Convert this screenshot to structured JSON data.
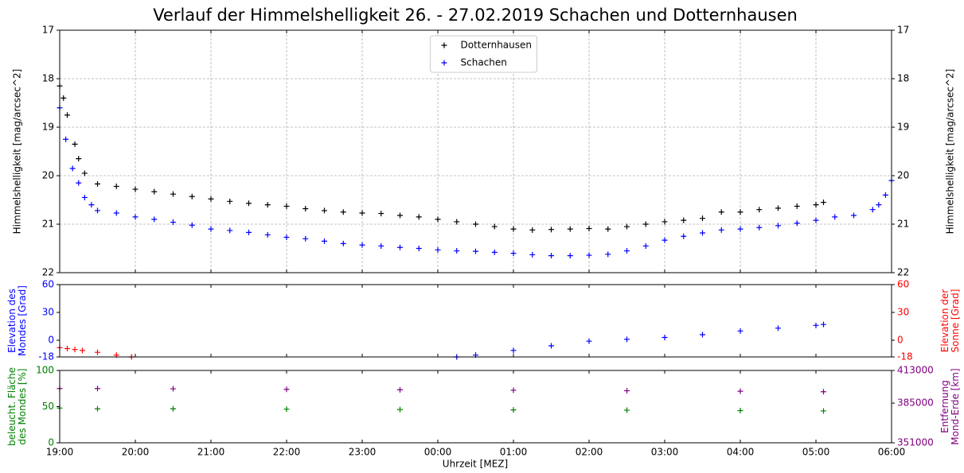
{
  "chart_data": [
    {
      "type": "scatter",
      "title": "Verlauf der Himmelshelligkeit 26. - 27.02.2019 Schachen und Dotternhausen",
      "ylabel": [
        "Himmelshelligkeit [mag/arcsec^2]"
      ],
      "y2label": [
        "Himmelshelligkeit [mag/arcsec^2]"
      ],
      "ylim": [
        22,
        17
      ],
      "yticks": [
        17,
        18,
        19,
        20,
        21,
        22
      ],
      "y2lim": [
        22,
        17
      ],
      "y2ticks": [
        17,
        18,
        19,
        20,
        21,
        22
      ],
      "y_color": "#000000",
      "y2_color": "#000000",
      "grid": true,
      "legend": "upper center",
      "series": [
        {
          "name": "Dotternhausen",
          "color": "#000000",
          "x": [
            19.0,
            19.05,
            19.1,
            19.2,
            19.25,
            19.33,
            19.5,
            19.75,
            20.0,
            20.25,
            20.5,
            20.75,
            21.0,
            21.25,
            21.5,
            21.75,
            22.0,
            22.25,
            22.5,
            22.75,
            23.0,
            23.25,
            23.5,
            23.75,
            24.0,
            24.25,
            24.5,
            24.75,
            25.0,
            25.25,
            25.5,
            25.75,
            26.0,
            26.25,
            26.5,
            26.75,
            27.0,
            27.25,
            27.5,
            27.75,
            28.0,
            28.25,
            28.5,
            28.75,
            29.0,
            29.1
          ],
          "values": [
            18.15,
            18.4,
            18.75,
            19.35,
            19.65,
            19.95,
            20.17,
            20.22,
            20.28,
            20.33,
            20.38,
            20.43,
            20.48,
            20.53,
            20.57,
            20.6,
            20.63,
            20.68,
            20.72,
            20.75,
            20.77,
            20.78,
            20.82,
            20.85,
            20.9,
            20.95,
            21.0,
            21.05,
            21.1,
            21.12,
            21.11,
            21.1,
            21.09,
            21.1,
            21.05,
            21.0,
            20.95,
            20.92,
            20.88,
            20.75,
            20.75,
            20.7,
            20.67,
            20.63,
            20.6,
            20.55
          ]
        },
        {
          "name": "Schachen",
          "color": "#0000ff",
          "x": [
            19.0,
            19.08,
            19.17,
            19.25,
            19.33,
            19.42,
            19.5,
            19.75,
            20.0,
            20.25,
            20.5,
            20.75,
            21.0,
            21.25,
            21.5,
            21.75,
            22.0,
            22.25,
            22.5,
            22.75,
            23.0,
            23.25,
            23.5,
            23.75,
            24.0,
            24.25,
            24.5,
            24.75,
            25.0,
            25.25,
            25.5,
            25.75,
            26.0,
            26.25,
            26.5,
            26.75,
            27.0,
            27.25,
            27.5,
            27.75,
            28.0,
            28.25,
            28.5,
            28.75,
            29.0,
            29.25,
            29.5,
            29.75,
            29.83,
            29.92,
            30.0
          ],
          "values": [
            18.6,
            19.25,
            19.85,
            20.15,
            20.45,
            20.6,
            20.72,
            20.77,
            20.85,
            20.9,
            20.96,
            21.02,
            21.1,
            21.13,
            21.17,
            21.22,
            21.27,
            21.3,
            21.35,
            21.4,
            21.43,
            21.45,
            21.48,
            21.5,
            21.53,
            21.55,
            21.56,
            21.58,
            21.6,
            21.63,
            21.65,
            21.65,
            21.64,
            21.62,
            21.55,
            21.45,
            21.33,
            21.25,
            21.18,
            21.12,
            21.1,
            21.07,
            21.03,
            20.98,
            20.92,
            20.85,
            20.82,
            20.7,
            20.6,
            20.4,
            20.1
          ]
        }
      ]
    },
    {
      "type": "scatter",
      "ylabel": [
        "Elevation des",
        "Mondes [Grad]"
      ],
      "y2label": [
        "Elevation der",
        "Sonne [Grad]"
      ],
      "ylim": [
        -18,
        60
      ],
      "yticks": [
        -18,
        0,
        30,
        60
      ],
      "y2lim": [
        -18,
        60
      ],
      "y2ticks": [
        -18,
        0,
        30,
        60
      ],
      "y_color": "#0000ff",
      "y2_color": "#ff0000",
      "series": [
        {
          "color": "#0000ff",
          "x": [
            24.25,
            24.5,
            25.0,
            25.5,
            26.0,
            26.5,
            27.0,
            27.5,
            28.0,
            28.5,
            29.0,
            29.1
          ],
          "values": [
            -18,
            -16,
            -11,
            -6,
            -1,
            1,
            3,
            6,
            10,
            13,
            16,
            17
          ]
        },
        {
          "color": "#ff0000",
          "axis": "y2",
          "x": [
            19.0,
            19.1,
            19.2,
            19.3,
            19.5,
            19.75,
            19.95
          ],
          "values": [
            -8,
            -9,
            -10,
            -11,
            -13,
            -16,
            -18
          ]
        }
      ]
    },
    {
      "type": "scatter",
      "ylabel": [
        "beleucht. Fläche",
        "des Mondes [%]"
      ],
      "y2label": [
        "Entfernung",
        "Mond-Erde [km]"
      ],
      "xlabel": "Uhrzeit [MEZ]",
      "xlim": [
        19,
        30
      ],
      "xticks": [
        {
          "value": 19,
          "label": "19:00"
        },
        {
          "value": 20,
          "label": "20:00"
        },
        {
          "value": 21,
          "label": "21:00"
        },
        {
          "value": 22,
          "label": "22:00"
        },
        {
          "value": 23,
          "label": "23:00"
        },
        {
          "value": 24,
          "label": "00:00"
        },
        {
          "value": 25,
          "label": "01:00"
        },
        {
          "value": 26,
          "label": "02:00"
        },
        {
          "value": 27,
          "label": "03:00"
        },
        {
          "value": 28,
          "label": "04:00"
        },
        {
          "value": 29,
          "label": "05:00"
        },
        {
          "value": 30,
          "label": "06:00"
        }
      ],
      "ylim": [
        0,
        100
      ],
      "yticks": [
        0,
        50,
        100
      ],
      "y2lim": [
        351000,
        413000
      ],
      "y2ticks": [
        351000,
        385000,
        413000
      ],
      "y_color": "#008000",
      "y2_color": "#800080",
      "series": [
        {
          "color": "#008000",
          "x": [
            19.0,
            19.5,
            20.5,
            22.0,
            23.5,
            25.0,
            26.5,
            28.0,
            29.1
          ],
          "values": [
            48,
            47,
            47,
            46.5,
            46,
            45.5,
            45,
            44.5,
            44
          ]
        },
        {
          "color": "#800080",
          "axis": "y2",
          "x": [
            19.0,
            19.5,
            20.5,
            22.0,
            23.5,
            25.0,
            26.5,
            28.0,
            29.1
          ],
          "values": [
            397500,
            397500,
            397300,
            396800,
            396400,
            396000,
            395600,
            395200,
            394800
          ]
        }
      ]
    }
  ]
}
